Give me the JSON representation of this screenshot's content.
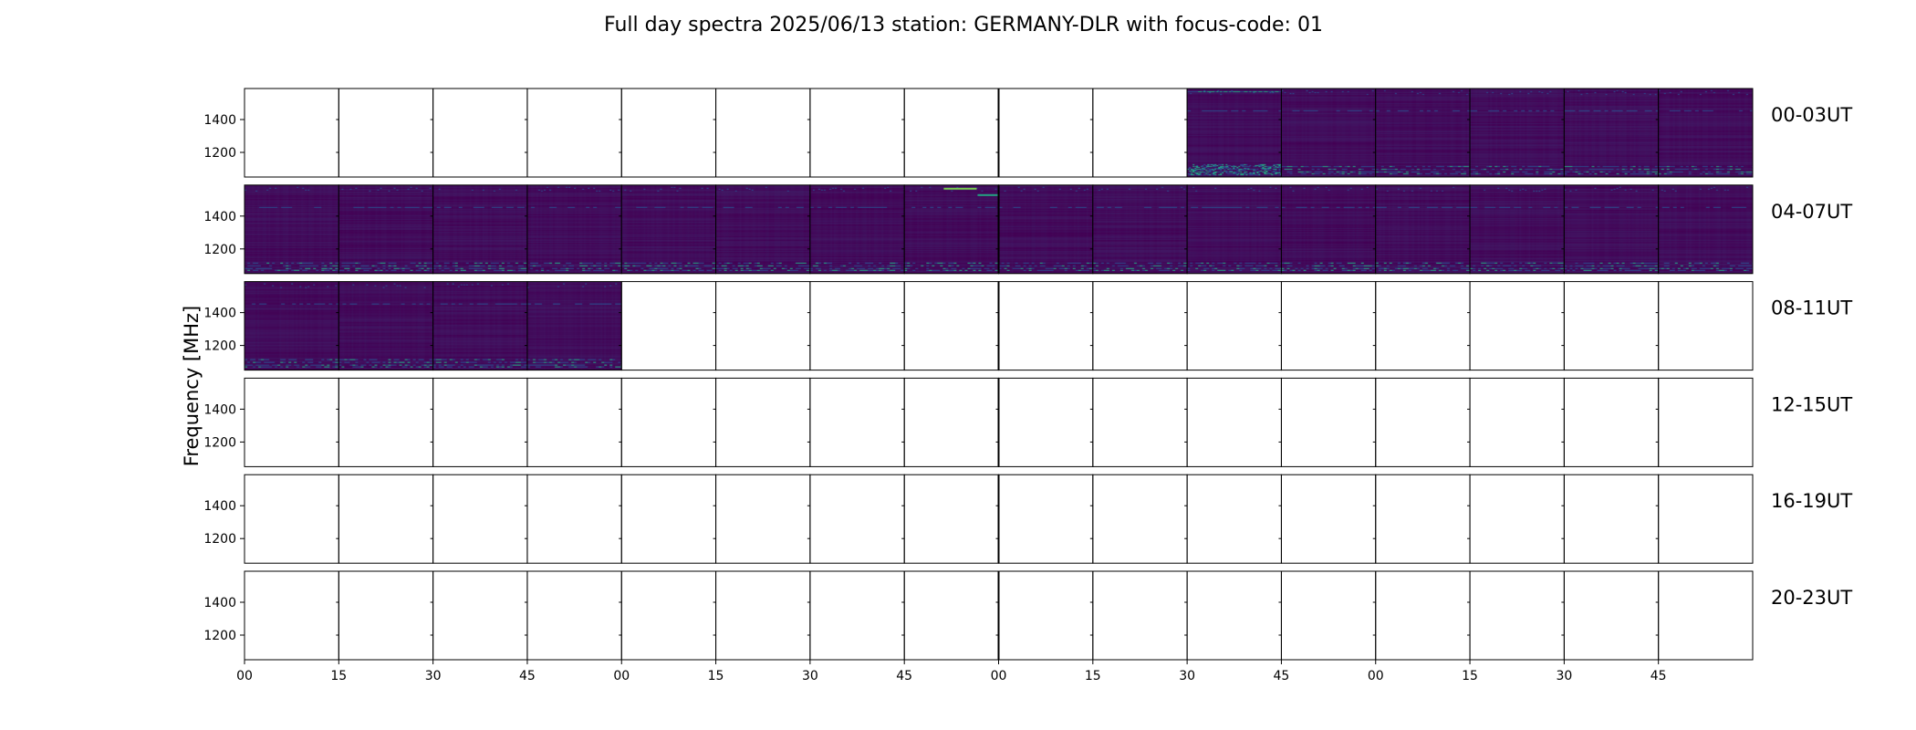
{
  "chart_data": {
    "type": "heatmap",
    "title": "Full day spectra 2025/06/13 station: GERMANY-DLR with focus-code: 01",
    "ylabel": "Frequency [MHz]",
    "xlabel": "",
    "y_ticks": [
      "1400",
      "1200"
    ],
    "x_ticks": [
      "00",
      "15",
      "30",
      "45",
      "00",
      "15",
      "30",
      "45",
      "00",
      "15",
      "30",
      "45",
      "00",
      "15",
      "30",
      "45"
    ],
    "rows": [
      {
        "label": "00-03UT",
        "panels_with_data": [
          10,
          11,
          12,
          13,
          14,
          15
        ]
      },
      {
        "label": "04-07UT",
        "panels_with_data": [
          0,
          1,
          2,
          3,
          4,
          5,
          6,
          7,
          8,
          9,
          10,
          11,
          12,
          13,
          14,
          15
        ]
      },
      {
        "label": "08-11UT",
        "panels_with_data": [
          0,
          1,
          2,
          3
        ]
      },
      {
        "label": "12-15UT",
        "panels_with_data": []
      },
      {
        "label": "16-19UT",
        "panels_with_data": []
      },
      {
        "label": "20-23UT",
        "panels_with_data": []
      }
    ],
    "panels_per_row": 16,
    "colormap": {
      "background": "#440154",
      "mid": "#2c4a8c",
      "high": "#22a884",
      "peak": "#7ad151"
    },
    "grid": false
  }
}
